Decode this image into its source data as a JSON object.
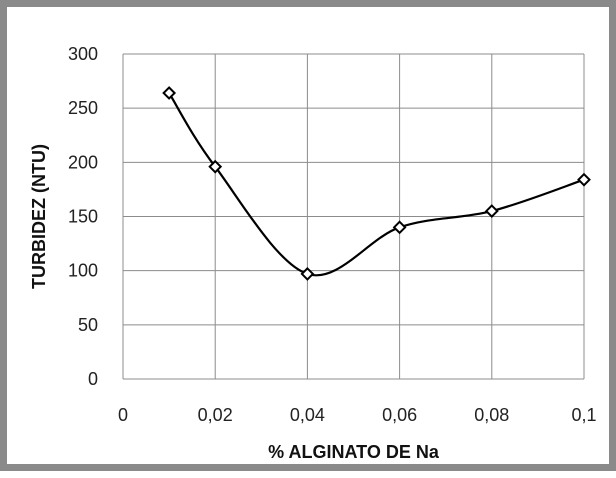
{
  "chart_data": {
    "type": "line",
    "title": "",
    "xlabel": "% ALGINATO DE Na",
    "ylabel": "TURBIDEZ (NTU)",
    "xlim": [
      0,
      0.1
    ],
    "ylim": [
      0,
      300
    ],
    "x_ticks": [
      "0",
      "0,02",
      "0,04",
      "0,06",
      "0,08",
      "0,1"
    ],
    "y_ticks": [
      "0",
      "50",
      "100",
      "150",
      "200",
      "250",
      "300"
    ],
    "grid": true,
    "legend": "none",
    "series": [
      {
        "x": [
          0.01,
          0.02,
          0.04,
          0.06,
          0.08,
          0.1
        ],
        "y": [
          264,
          196,
          97,
          140,
          155,
          184
        ],
        "marker": "diamond-open",
        "line": "smooth",
        "color": "#000000"
      }
    ]
  }
}
